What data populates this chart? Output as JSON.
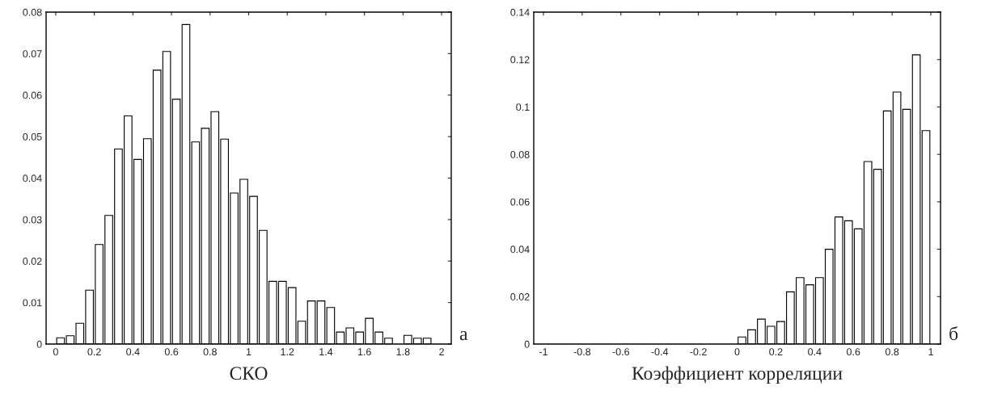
{
  "chart_data": [
    {
      "type": "histogram",
      "xlabel": "СКО",
      "annotations": [
        "а"
      ],
      "color": "#ffffff",
      "bins": [
        0,
        0.05,
        0.1,
        0.15,
        0.2,
        0.25,
        0.3,
        0.35,
        0.4,
        0.45,
        0.5,
        0.55,
        0.6,
        0.65,
        0.7,
        0.75,
        0.8,
        0.85,
        0.9,
        0.95,
        1,
        1.05,
        1.1,
        1.15,
        1.2,
        1.25,
        1.3,
        1.35,
        1.4,
        1.45,
        1.5,
        1.55,
        1.6,
        1.65,
        1.7,
        1.75,
        1.8,
        1.85,
        1.9,
        1.95
      ],
      "values": [
        0.0015,
        0.002,
        0.005,
        0.013,
        0.024,
        0.031,
        0.047,
        0.055,
        0.0445,
        0.0495,
        0.066,
        0.0705,
        0.059,
        0.077,
        0.0487,
        0.052,
        0.056,
        0.0494,
        0.0364,
        0.0397,
        0.0356,
        0.0274,
        0.0151,
        0.0151,
        0.0136,
        0.0055,
        0.0104,
        0.0104,
        0.0088,
        0.0029,
        0.0039,
        0.0029,
        0.0062,
        0.0029,
        0.0014,
        0,
        0.0021,
        0.0014,
        0.0014
      ],
      "xlim": [
        -0.05,
        2.05
      ],
      "ylim": [
        0,
        0.08
      ],
      "xticks": [
        0,
        0.2,
        0.4,
        0.6,
        0.8,
        1,
        1.2,
        1.4,
        1.6,
        1.8,
        2
      ],
      "yticks": [
        0,
        0.01,
        0.02,
        0.03,
        0.04,
        0.05,
        0.06,
        0.07,
        0.08
      ],
      "grid": false
    },
    {
      "type": "histogram",
      "xlabel": "Коэффициент корреляции",
      "annotations": [
        "б"
      ],
      "color": "#ffffff",
      "bins": [
        0,
        0.05,
        0.1,
        0.15,
        0.2,
        0.25,
        0.3,
        0.35,
        0.4,
        0.45,
        0.5,
        0.55,
        0.6,
        0.65,
        0.7,
        0.75,
        0.8,
        0.85,
        0.9,
        0.95,
        1
      ],
      "values": [
        0.003,
        0.006,
        0.0105,
        0.0075,
        0.0095,
        0.022,
        0.028,
        0.025,
        0.028,
        0.04,
        0.0536,
        0.052,
        0.0486,
        0.077,
        0.0737,
        0.0983,
        0.1063,
        0.099,
        0.122,
        0.09
      ],
      "xlim": [
        -1.05,
        1.05
      ],
      "ylim": [
        0,
        0.14
      ],
      "xticks": [
        -1,
        -0.8,
        -0.6,
        -0.4,
        -0.2,
        0,
        0.2,
        0.4,
        0.6,
        0.8,
        1
      ],
      "yticks": [
        0,
        0.02,
        0.04,
        0.06,
        0.08,
        0.1,
        0.12,
        0.14
      ],
      "grid": false
    }
  ]
}
